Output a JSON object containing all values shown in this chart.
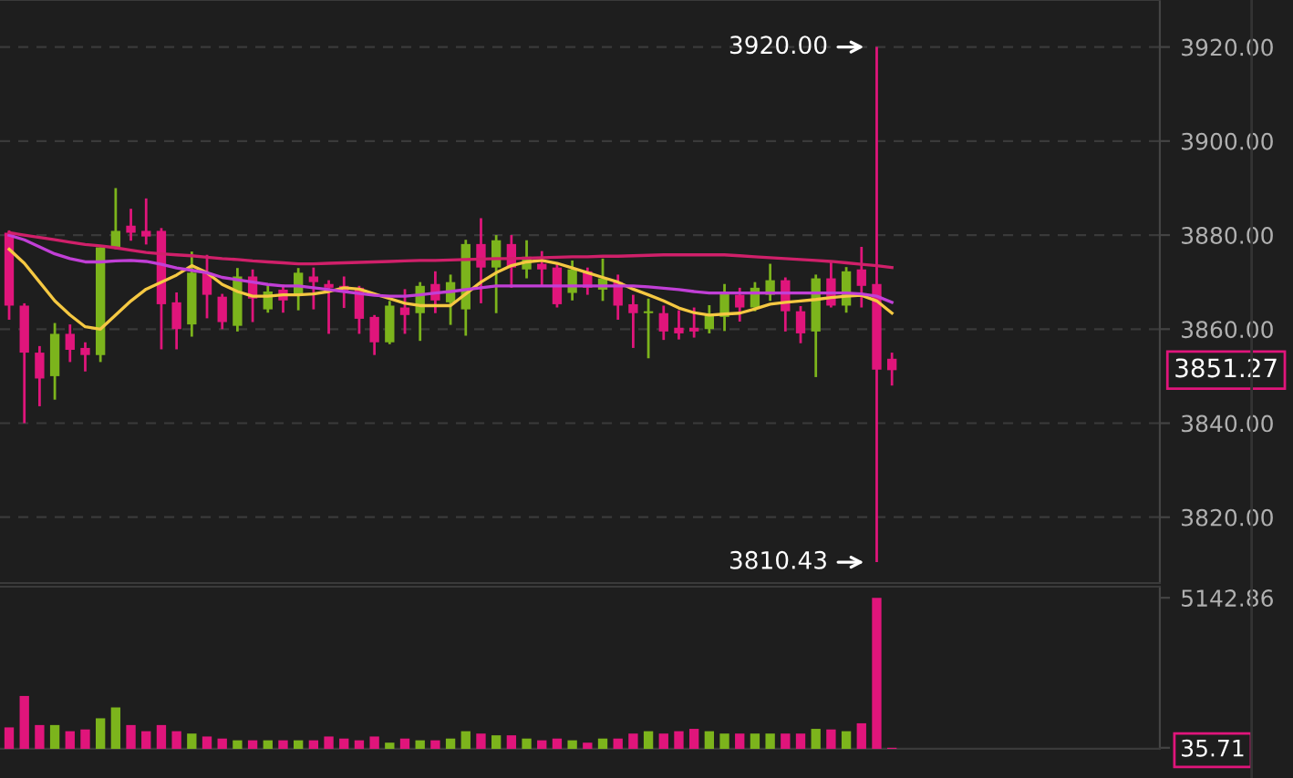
{
  "chart_data": [
    {
      "type": "candlestick",
      "categories": [
        null,
        null,
        null,
        null,
        null,
        null,
        null,
        null,
        null,
        null,
        null,
        null,
        null,
        null,
        null,
        null,
        null,
        null,
        null,
        null,
        null,
        null,
        null,
        null,
        null,
        null,
        null,
        null,
        null,
        null,
        null,
        null,
        null,
        null,
        null,
        null,
        null,
        null,
        null,
        null,
        null,
        null,
        null,
        null,
        null,
        null,
        null,
        null,
        null,
        null,
        null,
        null,
        null,
        null,
        null,
        null,
        null,
        null,
        null,
        null,
        null,
        null,
        null,
        null,
        null,
        null,
        null,
        null,
        null,
        null,
        null,
        null,
        null,
        null,
        null,
        null
      ],
      "ohlc": [
        [
          3880.5,
          3881,
          3862,
          3865
        ],
        [
          3865,
          3865.5,
          3840,
          3855
        ],
        [
          3855,
          3856.4,
          3843.6,
          3849.5
        ],
        [
          3850,
          3861.3,
          3845,
          3859
        ],
        [
          3859,
          3861,
          3853,
          3855.6
        ],
        [
          3856,
          3857.2,
          3851,
          3854.5
        ],
        [
          3854.5,
          3877.4,
          3853,
          3877.4
        ],
        [
          3877.4,
          3890,
          3877,
          3880.9
        ],
        [
          3882,
          3885.6,
          3878.8,
          3880.5
        ],
        [
          3880.9,
          3887.8,
          3878,
          3879.7
        ],
        [
          3880.9,
          3881.5,
          3855.7,
          3865.3
        ],
        [
          3865.7,
          3867.8,
          3855.7,
          3860
        ],
        [
          3861,
          3876.5,
          3858.4,
          3872
        ],
        [
          3872,
          3875.8,
          3862.3,
          3867.3
        ],
        [
          3866.9,
          3867.5,
          3860,
          3861.5
        ],
        [
          3860.7,
          3873,
          3859.5,
          3871.2
        ],
        [
          3871.2,
          3872.7,
          3861.5,
          3866.5
        ],
        [
          3864.2,
          3869.5,
          3863.5,
          3868
        ],
        [
          3868.4,
          3869.5,
          3863.5,
          3866.1
        ],
        [
          3867.3,
          3873,
          3864,
          3872
        ],
        [
          3871.2,
          3873.1,
          3864.2,
          3870
        ],
        [
          3869.6,
          3870.4,
          3859,
          3868.8
        ],
        [
          3869.2,
          3871.2,
          3864.5,
          3868
        ],
        [
          3868.8,
          3869.2,
          3859,
          3862.2
        ],
        [
          3862.6,
          3863,
          3854.5,
          3857.2
        ],
        [
          3857.2,
          3866,
          3856.8,
          3865
        ],
        [
          3864.6,
          3868.5,
          3859,
          3863
        ],
        [
          3863.4,
          3870,
          3857.5,
          3869.2
        ],
        [
          3869.6,
          3872.3,
          3863.4,
          3866.1
        ],
        [
          3865.7,
          3871.6,
          3860.9,
          3870
        ],
        [
          3864.2,
          3879,
          3858.6,
          3878.1
        ],
        [
          3878.1,
          3883.6,
          3865.5,
          3873.1
        ],
        [
          3873.1,
          3880,
          3863.4,
          3878.9
        ],
        [
          3878.1,
          3880,
          3868.8,
          3873.1
        ],
        [
          3872.7,
          3878.9,
          3870.8,
          3875.4
        ],
        [
          3873.9,
          3876.6,
          3869.2,
          3872.7
        ],
        [
          3873.1,
          3874,
          3864.6,
          3865.3
        ],
        [
          3867.7,
          3874.6,
          3866.1,
          3872.7
        ],
        [
          3872.3,
          3873.1,
          3867.3,
          3868.8
        ],
        [
          3868.4,
          3875,
          3866,
          3870.8
        ],
        [
          3870,
          3871.6,
          3862,
          3865
        ],
        [
          3865.3,
          3867.3,
          3856,
          3863.4
        ],
        [
          3863.4,
          3866.5,
          3853.8,
          3863.8
        ],
        [
          3863.4,
          3865,
          3857.7,
          3859.5
        ],
        [
          3860.3,
          3864,
          3857.8,
          3859.1
        ],
        [
          3860.3,
          3864.6,
          3858.2,
          3859.5
        ],
        [
          3860,
          3865.1,
          3859.1,
          3863
        ],
        [
          3862.6,
          3869.6,
          3859.6,
          3868
        ],
        [
          3867.3,
          3868.8,
          3861.6,
          3864.6
        ],
        [
          3864.6,
          3870,
          3863.8,
          3868.8
        ],
        [
          3867.3,
          3873.9,
          3866,
          3870.4
        ],
        [
          3870.4,
          3871,
          3859.5,
          3863.8
        ],
        [
          3863.8,
          3864.9,
          3857,
          3859.1
        ],
        [
          3859.5,
          3871.6,
          3849.8,
          3870.8
        ],
        [
          3870.8,
          3874.3,
          3864.6,
          3865
        ],
        [
          3865,
          3873.2,
          3863.5,
          3872.3
        ],
        [
          3872.7,
          3877.5,
          3864.6,
          3869.2
        ],
        [
          3869.6,
          3920,
          3810.43,
          3851.4
        ],
        [
          3853.7,
          3855,
          3848,
          3851.27
        ],
        null,
        null,
        null,
        null,
        null,
        null,
        null,
        null,
        null,
        null,
        null,
        null,
        null,
        null,
        null,
        null,
        null
      ],
      "colors": [
        "#e0157b",
        "#e0157b",
        "#e0157b",
        "#7cb41c",
        "#e0157b",
        "#e0157b",
        "#7cb41c",
        "#7cb41c",
        "#e0157b",
        "#e0157b",
        "#e0157b",
        "#e0157b",
        "#7cb41c",
        "#e0157b",
        "#e0157b",
        "#7cb41c",
        "#e0157b",
        "#7cb41c",
        "#e0157b",
        "#7cb41c",
        "#e0157b",
        "#e0157b",
        "#e0157b",
        "#e0157b",
        "#e0157b",
        "#7cb41c",
        "#e0157b",
        "#7cb41c",
        "#e0157b",
        "#7cb41c",
        "#7cb41c",
        "#e0157b",
        "#7cb41c",
        "#e0157b",
        "#7cb41c",
        "#e0157b",
        "#e0157b",
        "#7cb41c",
        "#e0157b",
        "#7cb41c",
        "#e0157b",
        "#e0157b",
        "#7cb41c",
        "#e0157b",
        "#e0157b",
        "#e0157b",
        "#7cb41c",
        "#7cb41c",
        "#e0157b",
        "#7cb41c",
        "#7cb41c",
        "#e0157b",
        "#e0157b",
        "#7cb41c",
        "#e0157b",
        "#7cb41c",
        "#e0157b",
        "#e0157b",
        "#e0157b",
        null,
        null,
        null,
        null,
        null,
        null,
        null,
        null,
        null,
        null,
        null,
        null,
        null,
        null,
        null,
        null,
        null
      ],
      "series": [
        {
          "type": "line",
          "color": "#f5c842",
          "values": [
            3877,
            3874,
            3870,
            3866,
            3863,
            3860.5,
            3860,
            3863,
            3866,
            3868.5,
            3870,
            3871.5,
            3873.5,
            3872,
            3869.5,
            3868,
            3867,
            3867,
            3867.3,
            3867.3,
            3867.5,
            3868,
            3868.8,
            3868.5,
            3867.5,
            3866.5,
            3865.5,
            3865,
            3865,
            3865,
            3867.5,
            3870,
            3872,
            3873.5,
            3874.3,
            3874.6,
            3874,
            3873,
            3872,
            3871,
            3870,
            3868.5,
            3867.3,
            3866,
            3864.5,
            3863.5,
            3863,
            3863.2,
            3863.4,
            3864.3,
            3865.3,
            3865.7,
            3866,
            3866.3,
            3866.7,
            3867,
            3867.2,
            3866,
            3863.4,
            null,
            null,
            null,
            null,
            null,
            null,
            null,
            null,
            null,
            null,
            null,
            null,
            null,
            null,
            null,
            null,
            null
          ]
        },
        {
          "type": "line",
          "color": "#c13fd6",
          "values": [
            3880,
            3879,
            3877.5,
            3876,
            3875,
            3874.3,
            3874.3,
            3874.5,
            3874.6,
            3874.4,
            3873.8,
            3873,
            3872.5,
            3872,
            3871,
            3870.5,
            3870,
            3869.5,
            3869.2,
            3869.2,
            3868.8,
            3868.4,
            3868,
            3867.6,
            3867.2,
            3867,
            3867,
            3867.3,
            3867.7,
            3868,
            3868.4,
            3868.8,
            3869.2,
            3869.2,
            3869.2,
            3869.2,
            3869.2,
            3869.2,
            3869.2,
            3869.2,
            3869.2,
            3869.2,
            3869,
            3868.7,
            3868.4,
            3868,
            3867.7,
            3867.7,
            3867.7,
            3867.7,
            3867.7,
            3867.7,
            3867.7,
            3867.7,
            3867.7,
            3867.7,
            3867.5,
            3867,
            3865.7,
            null,
            null,
            null,
            null,
            null,
            null,
            null,
            null,
            null,
            null,
            null,
            null,
            null,
            null,
            null,
            null,
            null
          ]
        },
        {
          "type": "line",
          "color": "#d0206a",
          "values": [
            3880.5,
            3880,
            3879.5,
            3879,
            3878.5,
            3878,
            3877.7,
            3877.3,
            3876.8,
            3876.3,
            3876,
            3875.8,
            3875.6,
            3875.3,
            3875,
            3874.8,
            3874.5,
            3874.3,
            3874.1,
            3873.9,
            3873.9,
            3874,
            3874.1,
            3874.2,
            3874.3,
            3874.4,
            3874.5,
            3874.6,
            3874.6,
            3874.7,
            3874.8,
            3874.9,
            3875,
            3875,
            3875.1,
            3875.2,
            3875.3,
            3875.4,
            3875.4,
            3875.5,
            3875.5,
            3875.6,
            3875.7,
            3875.8,
            3875.8,
            3875.8,
            3875.8,
            3875.8,
            3875.6,
            3875.4,
            3875.2,
            3875,
            3874.8,
            3874.6,
            3874.4,
            3874.1,
            3873.8,
            3873.5,
            3873.1,
            null,
            null,
            null,
            null,
            null,
            null,
            null,
            null,
            null,
            null,
            null,
            null,
            null,
            null,
            null,
            null,
            null
          ]
        }
      ],
      "ylim": [
        3806,
        3930
      ],
      "yticks": [
        {
          "value": 3820,
          "label": "3820.00"
        },
        {
          "value": 3840,
          "label": "3840.00"
        },
        {
          "value": 3860,
          "label": "3860.00"
        },
        {
          "value": 3880,
          "label": "3880.00"
        },
        {
          "value": 3900,
          "label": "3900.00"
        },
        {
          "value": 3920,
          "label": "3920.00"
        }
      ],
      "annotations": [
        "3920.00",
        "3810.43",
        "3851.27"
      ],
      "grid": "y",
      "tick_labels": "y"
    },
    {
      "type": "bar",
      "categories": [
        null,
        null,
        null,
        null,
        null,
        null,
        null,
        null,
        null,
        null,
        null,
        null,
        null,
        null,
        null,
        null,
        null,
        null,
        null,
        null,
        null,
        null,
        null,
        null,
        null,
        null,
        null,
        null,
        null,
        null,
        null,
        null,
        null,
        null,
        null,
        null,
        null,
        null,
        null,
        null,
        null,
        null,
        null,
        null,
        null,
        null,
        null,
        null,
        null,
        null,
        null,
        null,
        null,
        null,
        null,
        null,
        null,
        null,
        null,
        null,
        null,
        null,
        null,
        null,
        null,
        null,
        null,
        null,
        null,
        null,
        null,
        null,
        null,
        null,
        null,
        null
      ],
      "values": [
        730,
        1800,
        810,
        810,
        600,
        660,
        1040,
        1410,
        810,
        600,
        810,
        600,
        520,
        420,
        350,
        290,
        290,
        290,
        290,
        290,
        290,
        420,
        350,
        290,
        420,
        210,
        350,
        290,
        290,
        350,
        600,
        520,
        460,
        460,
        350,
        290,
        350,
        290,
        210,
        350,
        350,
        520,
        600,
        520,
        600,
        680,
        600,
        520,
        520,
        520,
        520,
        520,
        520,
        680,
        660,
        600,
        870,
        5142.86,
        35.71,
        null,
        null,
        null,
        null,
        null,
        null,
        null,
        null,
        null,
        null,
        null,
        null,
        null,
        null,
        null,
        null,
        null
      ],
      "colors": [
        "#e0157b",
        "#e0157b",
        "#e0157b",
        "#7cb41c",
        "#e0157b",
        "#e0157b",
        "#7cb41c",
        "#7cb41c",
        "#e0157b",
        "#e0157b",
        "#e0157b",
        "#e0157b",
        "#7cb41c",
        "#e0157b",
        "#e0157b",
        "#7cb41c",
        "#e0157b",
        "#7cb41c",
        "#e0157b",
        "#7cb41c",
        "#e0157b",
        "#e0157b",
        "#e0157b",
        "#e0157b",
        "#e0157b",
        "#7cb41c",
        "#e0157b",
        "#7cb41c",
        "#e0157b",
        "#7cb41c",
        "#7cb41c",
        "#e0157b",
        "#7cb41c",
        "#e0157b",
        "#7cb41c",
        "#e0157b",
        "#e0157b",
        "#7cb41c",
        "#e0157b",
        "#7cb41c",
        "#e0157b",
        "#e0157b",
        "#7cb41c",
        "#e0157b",
        "#e0157b",
        "#e0157b",
        "#7cb41c",
        "#7cb41c",
        "#e0157b",
        "#7cb41c",
        "#7cb41c",
        "#e0157b",
        "#e0157b",
        "#7cb41c",
        "#e0157b",
        "#7cb41c",
        "#e0157b",
        "#e0157b",
        "#e0157b",
        null,
        null,
        null,
        null,
        null,
        null,
        null,
        null,
        null,
        null,
        null,
        null,
        null,
        null,
        null,
        null,
        null
      ],
      "ylim": [
        0,
        5520
      ],
      "yticks": [
        {
          "value": 5142.86,
          "label": "5142.86"
        },
        {
          "value": 35.71,
          "label": "35.71"
        }
      ],
      "tick_labels": "y"
    }
  ]
}
